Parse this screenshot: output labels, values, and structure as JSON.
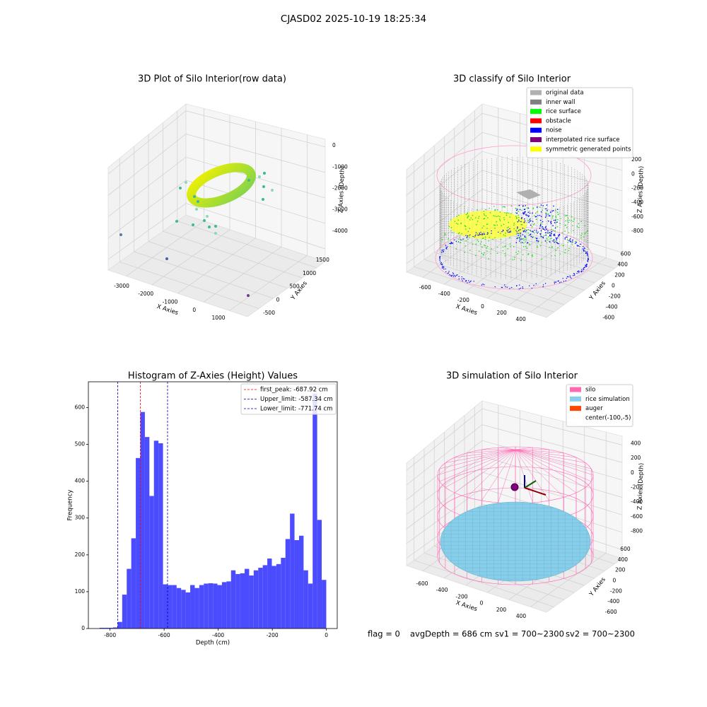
{
  "title": "CJASD02 2025-10-19 18:25:34",
  "footer": [
    "flag = 0",
    "avgDepth = 686 cm",
    "sv1 = 700~2300",
    "sv2 = 700~2300"
  ],
  "chart_data": [
    {
      "type": "scatter3d",
      "title": "3D Plot of Silo Interior(row data)",
      "xlabel": "X Axies",
      "ylabel": "Y Axies",
      "zlabel": "Z Axies (Depth)",
      "xlim": [
        -3700,
        1700
      ],
      "xticks": [
        -3000,
        -2000,
        -1000,
        0,
        1000
      ],
      "ylim": [
        -900,
        1800
      ],
      "yticks": [
        -500,
        0,
        500,
        1000,
        1500
      ],
      "zlim": [
        -4500,
        300
      ],
      "zticks": [
        0,
        -1000,
        -2000,
        -3000,
        -4000
      ],
      "grid": true
    },
    {
      "type": "scatter3d",
      "title": "3D classify of Silo Interior",
      "xlabel": "X Axies",
      "ylabel": "Y Axies",
      "zlabel": "Z Axies (Depth)",
      "xlim": [
        -750,
        550
      ],
      "xticks": [
        -600,
        -400,
        -200,
        0,
        200,
        400
      ],
      "ylim": [
        -750,
        750
      ],
      "yticks": [
        -600,
        -400,
        -200,
        0,
        200,
        400,
        600
      ],
      "zlim": [
        -900,
        300
      ],
      "zticks": [
        200,
        0,
        -200,
        -400,
        -600,
        -800
      ],
      "grid": true,
      "legend": "upper right",
      "series": [
        {
          "name": "original data",
          "color": "#b0b0b0"
        },
        {
          "name": "inner wall",
          "color": "#808080"
        },
        {
          "name": "rice surface",
          "color": "#00ff00"
        },
        {
          "name": "obstacle",
          "color": "#ff0000"
        },
        {
          "name": "noise",
          "color": "#0000ff"
        },
        {
          "name": "interpolated rice surface",
          "color": "#800080"
        },
        {
          "name": "symmetric generated points",
          "color": "#ffff00"
        }
      ]
    },
    {
      "type": "histogram",
      "title": "Histogram of Z-Axies (Height) Values",
      "xlabel": "Depth (cm)",
      "ylabel": "Frequency",
      "color": "#4c4cff",
      "bins": [
        -838.8,
        -822.04,
        -805.27,
        -788.51,
        -771.74,
        -754.98,
        -738.22,
        -721.45,
        -704.69,
        -687.92,
        -671.16,
        -654.4,
        -637.63,
        -620.87,
        -604.1,
        -587.34,
        -570.58,
        -553.81,
        -537.05,
        -520.28,
        -503.52,
        -486.76,
        -469.99,
        -453.23,
        -436.46,
        -419.7,
        -402.94,
        -386.17,
        -369.41,
        -352.64,
        -335.88,
        -319.12,
        -302.35,
        -285.59,
        -268.82,
        -252.06,
        -235.3,
        -218.53,
        -201.77,
        -185,
        -168.24,
        -151.48,
        -134.71,
        -117.95,
        -101.18,
        -84.42,
        -67.66,
        -50.89,
        -34.13,
        -17.36,
        -0.6
      ],
      "values": [
        2,
        2,
        2,
        3,
        18,
        92,
        162,
        245,
        463,
        588,
        520,
        360,
        510,
        503,
        120,
        118,
        118,
        110,
        105,
        98,
        118,
        110,
        118,
        122,
        123,
        122,
        118,
        126,
        128,
        158,
        148,
        150,
        162,
        144,
        158,
        165,
        172,
        190,
        170,
        175,
        192,
        243,
        312,
        240,
        252,
        158,
        122,
        638,
        295,
        132
      ],
      "xlim": [
        -880,
        40
      ],
      "xticks": [
        -800,
        -600,
        -400,
        -200,
        0
      ],
      "ylim": [
        0,
        670
      ],
      "yticks": [
        0,
        100,
        200,
        300,
        400,
        500,
        600
      ],
      "legend": "upper right",
      "lines": [
        {
          "name": "first_peak: -687.92 cm",
          "value": -687.92,
          "color": "#ff0000"
        },
        {
          "name": "Upper_limit: -587.34 cm",
          "value": -587.34,
          "color": "#0000aa"
        },
        {
          "name": "Lower_limit: -771.74 cm",
          "value": -771.74,
          "color": "#0000aa"
        }
      ]
    },
    {
      "type": "scatter3d",
      "title": "3D simulation of Silo Interior",
      "xlabel": "X Axies",
      "ylabel": "Y Axies",
      "zlabel": "Z Axies (Depth)",
      "xlim": [
        -750,
        550
      ],
      "xticks": [
        -600,
        -400,
        -200,
        0,
        200,
        400
      ],
      "ylim": [
        -750,
        750
      ],
      "yticks": [
        -600,
        -400,
        -200,
        0,
        200,
        400,
        600
      ],
      "zlim": [
        -900,
        500
      ],
      "zticks": [
        400,
        200,
        0,
        -200,
        -400,
        -600,
        -800
      ],
      "grid": true,
      "legend": "upper right",
      "series": [
        {
          "name": "silo",
          "color": "#ff69b4"
        },
        {
          "name": "rice simulation",
          "color": "#87ceeb"
        },
        {
          "name": "auger",
          "color": "#ff4500"
        },
        {
          "name": "center(-100,-5)",
          "color": "#ffffff"
        }
      ]
    }
  ]
}
